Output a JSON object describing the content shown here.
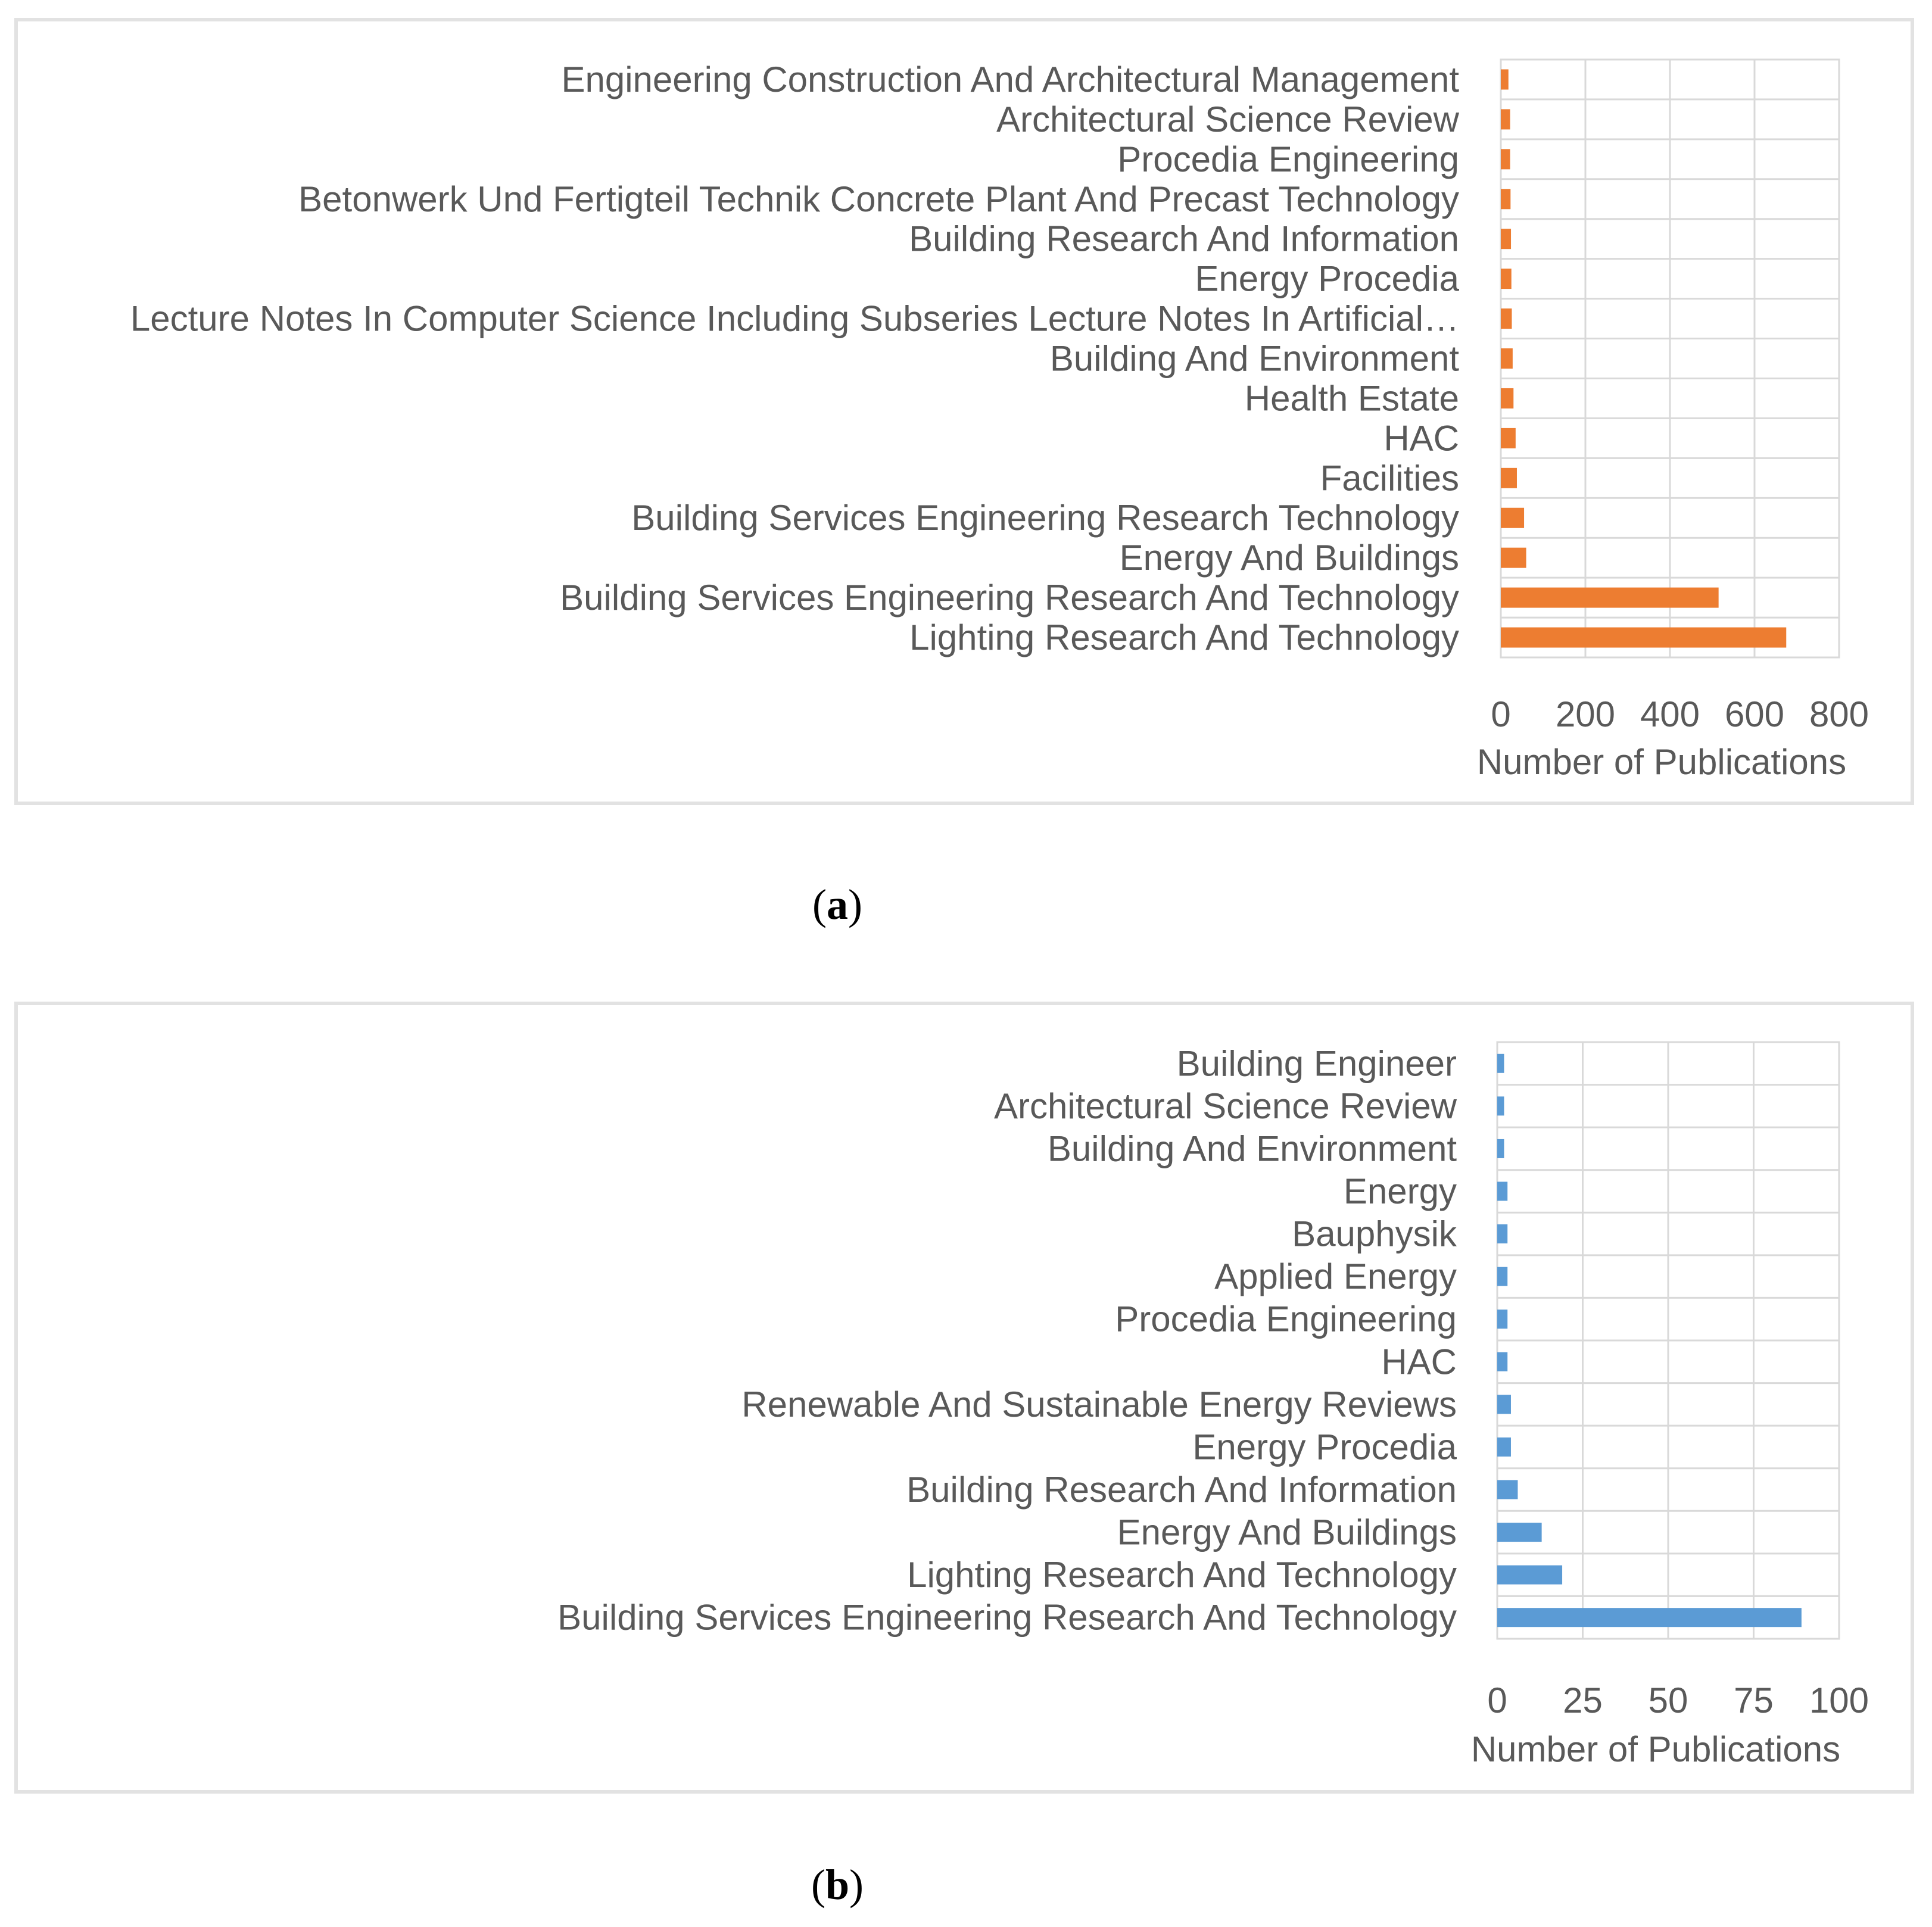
{
  "captions": {
    "a": "a",
    "b": "b"
  },
  "chart_data": [
    {
      "type": "bar",
      "orientation": "horizontal",
      "panel": "a",
      "color": "#ED7D31",
      "categories": [
        "Engineering Construction And Architectural Management",
        "Architectural Science Review",
        "Procedia Engineering",
        "Betonwerk Und Fertigteil Technik Concrete Plant And Precast Technology",
        "Building Research And Information",
        "Energy Procedia",
        "Lecture Notes In Computer Science Including Subseries Lecture Notes In Artificial…",
        "Building And Environment",
        "Health Estate",
        "HAC",
        "Facilities",
        "Building Services Engineering Research Technology",
        "Energy And Buildings",
        "Building Services Engineering Research And Technology",
        "Lighting Research And Technology"
      ],
      "values": [
        18,
        22,
        22,
        23,
        24,
        25,
        26,
        28,
        30,
        35,
        38,
        55,
        60,
        515,
        675
      ],
      "xlabel": "Number of Publications",
      "xlim": [
        0,
        800
      ],
      "xticks": [
        "0",
        "200",
        "400",
        "600",
        "800"
      ],
      "tick_values": [
        0,
        200,
        400,
        600,
        800
      ],
      "grid": true
    },
    {
      "type": "bar",
      "orientation": "horizontal",
      "panel": "b",
      "color": "#5B9BD5",
      "categories": [
        "Building Engineer",
        "Architectural Science Review",
        "Building And Environment",
        "Energy",
        "Bauphysik",
        "Applied Energy",
        "Procedia Engineering",
        "HAC",
        "Renewable And Sustainable Energy Reviews",
        "Energy Procedia",
        "Building Research And Information",
        "Energy And Buildings",
        "Lighting Research And Technology",
        "Building Services Engineering Research And Technology"
      ],
      "values": [
        2,
        2,
        2,
        3,
        3,
        3,
        3,
        3,
        4,
        4,
        6,
        13,
        19,
        89
      ],
      "xlabel": "Number of Publications",
      "xlim": [
        0,
        100
      ],
      "xticks": [
        "0",
        "25",
        "50",
        "75",
        "100"
      ],
      "tick_values": [
        0,
        25,
        50,
        75,
        100
      ],
      "grid": true
    }
  ]
}
